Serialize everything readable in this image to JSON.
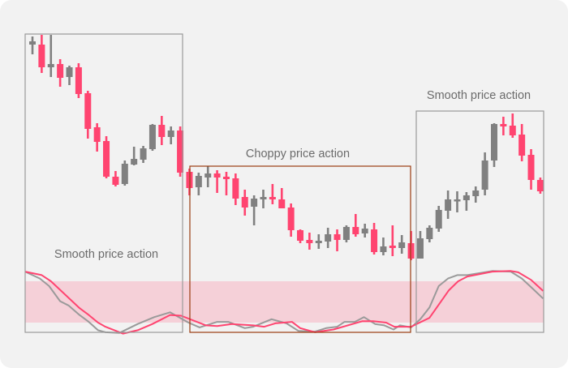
{
  "chart_data": {
    "type": "candlestick",
    "title": "",
    "annotations": [
      {
        "text": "Smooth price action",
        "box_color": "#9a9a9a"
      },
      {
        "text": "Choppy price action",
        "box_color": "#9a3c10"
      },
      {
        "text": "Smooth price action",
        "box_color": "#9a9a9a"
      }
    ],
    "annotation_spans": [
      [
        1,
        17
      ],
      [
        18,
        42
      ],
      [
        43,
        56
      ]
    ],
    "colors": {
      "up": "#808080",
      "down": "#ff4470",
      "band": "#f5d0d8",
      "fast_line": "#9a9a9a",
      "slow_line": "#ff4470",
      "background": "#f2f2f2"
    },
    "candles_ohlc": [
      [
        445,
        455,
        433,
        449
      ],
      [
        445,
        457,
        410,
        417
      ],
      [
        417,
        457,
        405,
        421
      ],
      [
        421,
        427,
        393,
        404
      ],
      [
        405,
        419,
        395,
        417
      ],
      [
        417,
        422,
        379,
        384
      ],
      [
        385,
        388,
        329,
        341
      ],
      [
        343,
        348,
        313,
        325
      ],
      [
        326,
        332,
        280,
        282
      ],
      [
        282,
        289,
        270,
        272
      ],
      [
        273,
        302,
        271,
        298
      ],
      [
        297,
        319,
        296,
        304
      ],
      [
        303,
        320,
        299,
        317
      ],
      [
        316,
        347,
        314,
        346
      ],
      [
        346,
        357,
        321,
        331
      ],
      [
        331,
        344,
        322,
        339
      ],
      [
        339,
        344,
        282,
        287
      ],
      [
        288,
        292,
        259,
        268
      ],
      [
        269,
        287,
        259,
        283
      ],
      [
        281,
        295,
        269,
        286
      ],
      [
        286,
        290,
        262,
        281
      ],
      [
        282,
        288,
        259,
        279
      ],
      [
        280,
        286,
        247,
        255
      ],
      [
        257,
        266,
        234,
        244
      ],
      [
        245,
        259,
        222,
        255
      ],
      [
        254,
        266,
        243,
        257
      ],
      [
        257,
        273,
        248,
        254
      ],
      [
        254,
        268,
        243,
        243
      ],
      [
        244,
        249,
        208,
        216
      ],
      [
        216,
        217,
        200,
        203
      ],
      [
        204,
        213,
        192,
        200
      ],
      [
        200,
        211,
        193,
        203
      ],
      [
        202,
        219,
        194,
        211
      ],
      [
        211,
        217,
        190,
        204
      ],
      [
        204,
        222,
        201,
        220
      ],
      [
        220,
        236,
        208,
        211
      ],
      [
        212,
        224,
        207,
        218
      ],
      [
        217,
        225,
        186,
        189
      ],
      [
        189,
        207,
        185,
        196
      ],
      [
        197,
        222,
        184,
        194
      ],
      [
        194,
        210,
        187,
        201
      ],
      [
        200,
        215,
        179,
        181
      ],
      [
        181,
        215,
        181,
        206
      ],
      [
        205,
        222,
        201,
        219
      ],
      [
        218,
        246,
        214,
        241
      ],
      [
        240,
        265,
        230,
        254
      ],
      [
        253,
        264,
        238,
        254
      ],
      [
        253,
        263,
        240,
        259
      ],
      [
        258,
        270,
        250,
        265
      ],
      [
        266,
        312,
        259,
        302
      ],
      [
        302,
        348,
        294,
        347
      ],
      [
        347,
        356,
        333,
        344
      ],
      [
        345,
        360,
        330,
        333
      ],
      [
        334,
        347,
        301,
        308
      ],
      [
        309,
        316,
        266,
        278
      ],
      [
        278,
        281,
        261,
        264
      ]
    ],
    "oscillator": {
      "ylim": [
        0,
        100
      ],
      "band": [
        20,
        80
      ],
      "fast_line": [
        [
          0.2,
          94
        ],
        [
          1.8,
          84
        ],
        [
          2.8,
          73
        ],
        [
          4.0,
          51
        ],
        [
          4.9,
          45
        ],
        [
          6.1,
          31
        ],
        [
          7.1,
          21
        ],
        [
          8.1,
          9
        ],
        [
          8.9,
          6
        ],
        [
          10.4,
          5
        ],
        [
          12.4,
          18
        ],
        [
          14.2,
          28
        ],
        [
          15.9,
          35
        ],
        [
          17.9,
          20
        ],
        [
          19.1,
          13
        ],
        [
          21.0,
          21
        ],
        [
          22.2,
          21
        ],
        [
          24.0,
          12
        ],
        [
          24.9,
          14
        ],
        [
          26.9,
          25
        ],
        [
          28.5,
          19
        ],
        [
          29.8,
          8
        ],
        [
          31.6,
          7
        ],
        [
          32.8,
          12
        ],
        [
          34.0,
          14
        ],
        [
          34.8,
          21
        ],
        [
          35.9,
          21
        ],
        [
          36.9,
          28
        ],
        [
          38.1,
          18
        ],
        [
          39.1,
          16
        ],
        [
          40.1,
          10
        ],
        [
          40.8,
          16
        ],
        [
          42.0,
          13
        ],
        [
          43.0,
          25
        ],
        [
          44.0,
          42
        ],
        [
          45.0,
          73
        ],
        [
          46.0,
          84
        ],
        [
          47.0,
          89
        ],
        [
          48.1,
          89
        ],
        [
          50.8,
          95
        ],
        [
          52.8,
          94
        ],
        [
          54.0,
          84
        ],
        [
          55.2,
          69
        ],
        [
          56.3,
          55
        ]
      ],
      "slow_line": [
        [
          0.2,
          94
        ],
        [
          2.0,
          89
        ],
        [
          3.0,
          80
        ],
        [
          6.1,
          41
        ],
        [
          7.1,
          31
        ],
        [
          8.1,
          20
        ],
        [
          8.9,
          14
        ],
        [
          10.8,
          4
        ],
        [
          12.4,
          9
        ],
        [
          14.0,
          18
        ],
        [
          15.9,
          31
        ],
        [
          17.1,
          30
        ],
        [
          19.8,
          16
        ],
        [
          21.0,
          15
        ],
        [
          22.6,
          18
        ],
        [
          24.9,
          16
        ],
        [
          26.1,
          14
        ],
        [
          27.3,
          19
        ],
        [
          29.1,
          21
        ],
        [
          30.0,
          12
        ],
        [
          31.6,
          6
        ],
        [
          33.6,
          10
        ],
        [
          36.7,
          22
        ],
        [
          37.9,
          22
        ],
        [
          39.3,
          20
        ],
        [
          40.2,
          14
        ],
        [
          42.0,
          14
        ],
        [
          44.0,
          27
        ],
        [
          46.1,
          67
        ],
        [
          47.1,
          80
        ],
        [
          48.1,
          87
        ],
        [
          50.8,
          94
        ],
        [
          52.8,
          95
        ],
        [
          53.6,
          93
        ],
        [
          55.0,
          82
        ],
        [
          56.3,
          66
        ]
      ]
    }
  }
}
